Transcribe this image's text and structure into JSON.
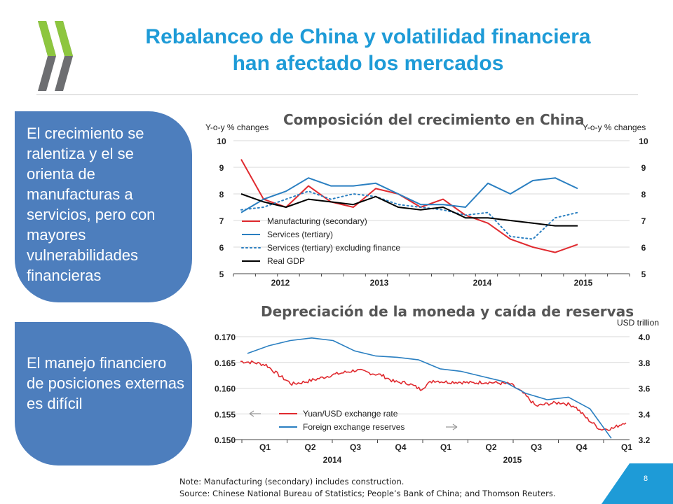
{
  "slide": {
    "title_line1": "Rebalanceo de China y volatilidad financiera",
    "title_line2": "han afectado los mercados",
    "page_number": "8",
    "colors": {
      "title": "#1e9bd7",
      "panel": "#4d7ebd",
      "logo": "#6d6e71",
      "logo_accent": "#8dc63f"
    },
    "logo_icon": "oecd-chevron-logo"
  },
  "panels": [
    {
      "text": "El crecimiento se ralentiza y el se orienta de manufacturas a servicios,  pero con mayores vulnerabilidades financieras"
    },
    {
      "text": "El manejo financiero de posiciones externas es difícil"
    }
  ],
  "notes": {
    "line1": "Note: Manufacturing (secondary) includes construction.",
    "line2": "Source: Chinese National Bureau of Statistics; People’s Bank of China; and Thomson Reuters."
  },
  "chart_data": [
    {
      "type": "line",
      "title": "Composición del crecimiento en China",
      "ylabel_left": "Y-o-y % changes",
      "ylabel_right": "Y-o-y % changes",
      "ylim": [
        5,
        10
      ],
      "yticks": [
        "5",
        "6",
        "7",
        "8",
        "9",
        "10"
      ],
      "xtick_labels": [
        "2012",
        "2013",
        "2014",
        "2015"
      ],
      "x": [
        "2011Q3",
        "2011Q4",
        "2012Q1",
        "2012Q2",
        "2012Q3",
        "2012Q4",
        "2013Q1",
        "2013Q2",
        "2013Q3",
        "2013Q4",
        "2014Q1",
        "2014Q2",
        "2014Q3",
        "2014Q4",
        "2015Q1",
        "2015Q2",
        "2015Q3",
        "2015Q4"
      ],
      "grid": true,
      "legend_position": "bottom-left",
      "series": [
        {
          "name": "Manufacturing (secondary)",
          "color": "#e02a2f",
          "style": "solid",
          "values": [
            9.3,
            7.8,
            7.5,
            8.3,
            7.7,
            7.5,
            8.2,
            8.0,
            7.5,
            7.8,
            7.2,
            6.9,
            6.3,
            6.0,
            5.8,
            6.1,
            null,
            null
          ]
        },
        {
          "name": "Services (tertiary)",
          "color": "#2a7fc1",
          "style": "solid",
          "values": [
            7.3,
            7.8,
            8.1,
            8.6,
            8.3,
            8.3,
            8.4,
            8.0,
            7.6,
            7.6,
            7.5,
            8.4,
            8.0,
            8.5,
            8.6,
            8.2,
            null,
            null
          ]
        },
        {
          "name": "Services (tertiary) excluding finance",
          "color": "#2a7fc1",
          "style": "dotted",
          "values": [
            7.4,
            7.5,
            7.8,
            8.1,
            7.8,
            8.0,
            7.9,
            7.6,
            7.5,
            7.4,
            7.2,
            7.3,
            6.4,
            6.3,
            7.1,
            7.3,
            null,
            null
          ]
        },
        {
          "name": "Real GDP",
          "color": "#000000",
          "style": "solid",
          "values": [
            8.0,
            7.7,
            7.5,
            7.8,
            7.7,
            7.6,
            7.9,
            7.5,
            7.4,
            7.5,
            7.1,
            7.1,
            7.0,
            6.9,
            6.8,
            6.8,
            null,
            null
          ]
        }
      ]
    },
    {
      "type": "line",
      "title": "Depreciación de la moneda y caída de reservas",
      "ylabel_right": "USD trillion",
      "ylim_left": [
        0.15,
        0.17
      ],
      "yticks_left": [
        "0.150",
        "0.155",
        "0.160",
        "0.165",
        "0.170"
      ],
      "ylim_right": [
        3.2,
        4.0
      ],
      "yticks_right": [
        "3.2",
        "3.4",
        "3.6",
        "3.8",
        "4.0"
      ],
      "xtick_labels": [
        "Q1",
        "Q2",
        "Q3",
        "Q4",
        "Q1",
        "Q2",
        "Q3",
        "Q4",
        "Q1"
      ],
      "year_labels": [
        "2014",
        "2015"
      ],
      "grid": true,
      "legend_position": "bottom-left",
      "series": [
        {
          "name": "Yuan/USD exchange rate",
          "color": "#e02a2f",
          "axis": "left",
          "values": [
            0.1652,
            0.165,
            0.1645,
            0.1625,
            0.1608,
            0.1612,
            0.1618,
            0.1625,
            0.163,
            0.1635,
            0.163,
            0.1625,
            0.1612,
            0.161,
            0.1598,
            0.1615,
            0.1612,
            0.1612,
            0.161,
            0.1612,
            0.161,
            0.1608,
            0.159,
            0.1565,
            0.157,
            0.1572,
            0.1565,
            0.154,
            0.152,
            0.1522,
            0.1535
          ]
        },
        {
          "name": "Foreign exchange reserves",
          "color": "#2a7fc1",
          "axis": "right",
          "values": [
            3.87,
            3.93,
            3.97,
            3.99,
            3.97,
            3.89,
            3.85,
            3.84,
            3.82,
            3.75,
            3.73,
            3.69,
            3.65,
            3.56,
            3.51,
            3.53,
            3.44,
            3.21
          ]
        }
      ]
    }
  ]
}
